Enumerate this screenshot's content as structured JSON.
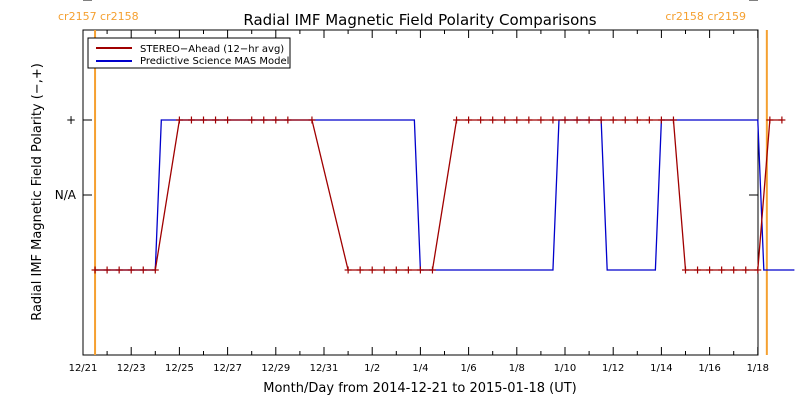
{
  "chart_data": {
    "type": "line",
    "title": "Radial IMF Magnetic Field Polarity Comparisons",
    "xlabel": "Month/Day from 2014-12-21 to 2015-01-18 (UT)",
    "ylabel": "Radial IMF Magnetic Field Polarity (−,+)",
    "x_range": [
      "2014-12-21",
      "2015-01-18"
    ],
    "x_ticks": [
      "12/21",
      "12/23",
      "12/25",
      "12/27",
      "12/29",
      "12/31",
      "1/2",
      "1/4",
      "1/6",
      "1/8",
      "1/10",
      "1/12",
      "1/14",
      "1/16",
      "1/18"
    ],
    "y_categories": [
      "−",
      "N/A",
      "+"
    ],
    "carrington_markers": [
      {
        "x": "2014-12-21 12:00",
        "label": "cr2157 cr2158",
        "position": "left"
      },
      {
        "x": "2015-01-18 09:00",
        "label": "cr2158 cr2159",
        "position": "right"
      }
    ],
    "colors": {
      "stereo": "#a00000",
      "model": "#0000cc",
      "cr": "#f5a030"
    },
    "series": [
      {
        "name": "STEREO−Ahead (12−hr avg)",
        "color": "#a00000",
        "style": "line-with-plus-markers",
        "points": [
          [
            "2014-12-21 12:00",
            "-"
          ],
          [
            "2014-12-22 00:00",
            "-"
          ],
          [
            "2014-12-22 12:00",
            "-"
          ],
          [
            "2014-12-23 00:00",
            "-"
          ],
          [
            "2014-12-23 12:00",
            "-"
          ],
          [
            "2014-12-24 00:00",
            "-"
          ],
          [
            "2014-12-25 00:00",
            "+"
          ],
          [
            "2014-12-25 12:00",
            "+"
          ],
          [
            "2014-12-26 00:00",
            "+"
          ],
          [
            "2014-12-26 12:00",
            "+"
          ],
          [
            "2014-12-27 00:00",
            "+"
          ],
          [
            "2014-12-28 00:00",
            "+"
          ],
          [
            "2014-12-28 12:00",
            "+"
          ],
          [
            "2014-12-29 00:00",
            "+"
          ],
          [
            "2014-12-29 12:00",
            "+"
          ],
          [
            "2014-12-30 12:00",
            "+"
          ],
          [
            "2015-01-01 00:00",
            "-"
          ],
          [
            "2015-01-01 12:00",
            "-"
          ],
          [
            "2015-01-02 00:00",
            "-"
          ],
          [
            "2015-01-02 12:00",
            "-"
          ],
          [
            "2015-01-03 00:00",
            "-"
          ],
          [
            "2015-01-03 12:00",
            "-"
          ],
          [
            "2015-01-04 00:00",
            "-"
          ],
          [
            "2015-01-04 12:00",
            "-"
          ],
          [
            "2015-01-05 12:00",
            "+"
          ],
          [
            "2015-01-06 00:00",
            "+"
          ],
          [
            "2015-01-06 12:00",
            "+"
          ],
          [
            "2015-01-07 00:00",
            "+"
          ],
          [
            "2015-01-07 12:00",
            "+"
          ],
          [
            "2015-01-08 00:00",
            "+"
          ],
          [
            "2015-01-08 12:00",
            "+"
          ],
          [
            "2015-01-09 00:00",
            "+"
          ],
          [
            "2015-01-09 12:00",
            "+"
          ],
          [
            "2015-01-10 00:00",
            "+"
          ],
          [
            "2015-01-10 12:00",
            "+"
          ],
          [
            "2015-01-11 00:00",
            "+"
          ],
          [
            "2015-01-11 12:00",
            "+"
          ],
          [
            "2015-01-12 00:00",
            "+"
          ],
          [
            "2015-01-12 12:00",
            "+"
          ],
          [
            "2015-01-13 00:00",
            "+"
          ],
          [
            "2015-01-13 12:00",
            "+"
          ],
          [
            "2015-01-14 00:00",
            "+"
          ],
          [
            "2015-01-14 12:00",
            "+"
          ],
          [
            "2015-01-15 00:00",
            "-"
          ],
          [
            "2015-01-15 12:00",
            "-"
          ],
          [
            "2015-01-16 00:00",
            "-"
          ],
          [
            "2015-01-16 12:00",
            "-"
          ],
          [
            "2015-01-17 00:00",
            "-"
          ],
          [
            "2015-01-17 12:00",
            "-"
          ],
          [
            "2015-01-18 00:00",
            "-"
          ],
          [
            "2015-01-18 12:00",
            "+"
          ],
          [
            "2015-01-19 00:00",
            "+"
          ]
        ]
      },
      {
        "name": "Predictive Science MAS Model",
        "color": "#0000cc",
        "style": "line",
        "points": [
          [
            "2014-12-21 12:00",
            "-"
          ],
          [
            "2014-12-24 00:00",
            "-"
          ],
          [
            "2014-12-24 06:00",
            "+"
          ],
          [
            "2015-01-03 18:00",
            "+"
          ],
          [
            "2015-01-04 00:00",
            "-"
          ],
          [
            "2015-01-09 12:00",
            "-"
          ],
          [
            "2015-01-09 18:00",
            "+"
          ],
          [
            "2015-01-11 12:00",
            "+"
          ],
          [
            "2015-01-11 18:00",
            "-"
          ],
          [
            "2015-01-13 18:00",
            "-"
          ],
          [
            "2015-01-14 00:00",
            "+"
          ],
          [
            "2015-01-18 00:00",
            "+"
          ],
          [
            "2015-01-18 06:00",
            "-"
          ],
          [
            "2015-01-19 12:00",
            "-"
          ]
        ]
      }
    ]
  }
}
